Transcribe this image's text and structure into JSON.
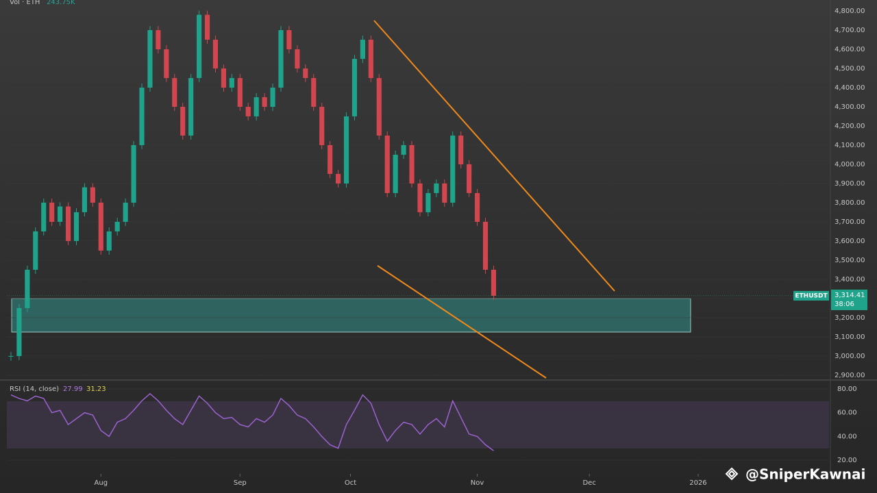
{
  "chart_data": {
    "type": "candlestick",
    "volume_label": "Vol · ETH",
    "volume_value": "243.75K",
    "symbol": "ETHUSDT",
    "last_price": {
      "value": 3314.41,
      "label": "3,314.41"
    },
    "countdown": "38:06",
    "up_color": "#1fa38b",
    "down_color": "#d2464f",
    "xlim": [
      -0.5,
      100
    ],
    "xticks": [
      {
        "value": 11,
        "label": "Aug"
      },
      {
        "value": 28,
        "label": "Sep"
      },
      {
        "value": 41.5,
        "label": "Oct"
      },
      {
        "value": 57,
        "label": "Nov"
      },
      {
        "value": 70.7,
        "label": "Dec"
      },
      {
        "value": 84,
        "label": "2026"
      }
    ],
    "ylim": [
      2882,
      4857
    ],
    "yticks": [
      {
        "value": 2900,
        "label": "2,900.00"
      },
      {
        "value": 3000,
        "label": "3,000.00"
      },
      {
        "value": 3100,
        "label": "3,100.00"
      },
      {
        "value": 3200,
        "label": "3,200.00"
      },
      {
        "value": 3300,
        "label": "3,300.00"
      },
      {
        "value": 3400,
        "label": "3,400.00"
      },
      {
        "value": 3500,
        "label": "3,500.00"
      },
      {
        "value": 3600,
        "label": "3,600.00"
      },
      {
        "value": 3700,
        "label": "3,700.00"
      },
      {
        "value": 3800,
        "label": "3,800.00"
      },
      {
        "value": 3900,
        "label": "3,900.00"
      },
      {
        "value": 4000,
        "label": "4,000.00"
      },
      {
        "value": 4100,
        "label": "4,100.00"
      },
      {
        "value": 4200,
        "label": "4,200.00"
      },
      {
        "value": 4300,
        "label": "4,300.00"
      },
      {
        "value": 4400,
        "label": "4,400.00"
      },
      {
        "value": 4500,
        "label": "4,500.00"
      },
      {
        "value": 4600,
        "label": "4,600.00"
      },
      {
        "value": 4700,
        "label": "4,700.00"
      },
      {
        "value": 4800,
        "label": "4,800.00"
      }
    ],
    "close": [
      3000,
      3250,
      3450,
      3650,
      3800,
      3700,
      3780,
      3600,
      3750,
      3880,
      3800,
      3550,
      3650,
      3700,
      3800,
      4100,
      4400,
      4700,
      4600,
      4450,
      4300,
      4150,
      4450,
      4780,
      4650,
      4500,
      4400,
      4450,
      4300,
      4250,
      4350,
      4300,
      4400,
      4700,
      4600,
      4500,
      4450,
      4300,
      4100,
      3950,
      3900,
      4250,
      4550,
      4650,
      4450,
      4150,
      3850,
      4050,
      4100,
      3900,
      3750,
      3850,
      3900,
      3800,
      4150,
      4000,
      3850,
      3700,
      3450,
      3314.41
    ],
    "rsi": {
      "label": "RSI (14, close)",
      "value": 27.99,
      "ma_value": 31.23,
      "color": "#9b63cf",
      "ylim": [
        8.5,
        85.8
      ],
      "yticks": [
        {
          "value": 20,
          "label": "20.00"
        },
        {
          "value": 40,
          "label": "40.00"
        },
        {
          "value": 60,
          "label": "60.00"
        },
        {
          "value": 80,
          "label": "80.00"
        }
      ],
      "values": [
        75,
        72,
        70,
        74,
        72,
        60,
        62,
        50,
        55,
        60,
        58,
        45,
        40,
        52,
        55,
        62,
        70,
        76,
        70,
        62,
        55,
        50,
        62,
        74,
        68,
        60,
        55,
        56,
        50,
        48,
        55,
        52,
        58,
        72,
        66,
        58,
        55,
        48,
        40,
        33,
        30,
        50,
        62,
        75,
        68,
        50,
        36,
        45,
        52,
        50,
        42,
        50,
        55,
        48,
        70,
        56,
        42,
        40,
        33,
        27.99
      ]
    }
  },
  "watermark": "@SniperKawnai"
}
